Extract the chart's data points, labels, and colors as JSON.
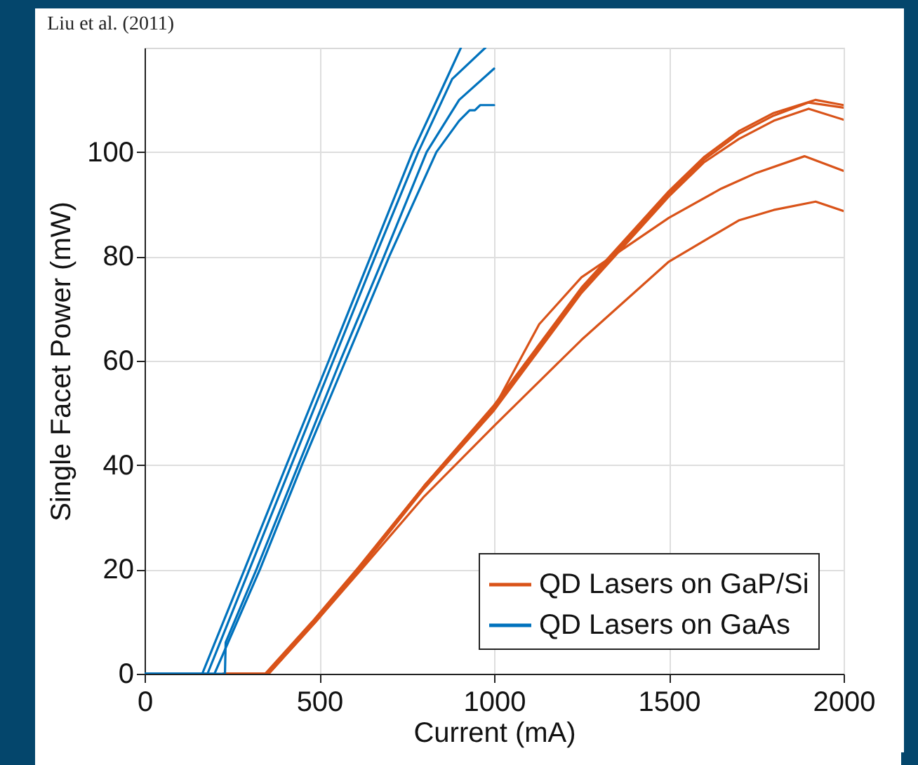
{
  "chart_data": {
    "type": "line",
    "xlabel": "Current (mA)",
    "ylabel": "Single Facet Power (mW)",
    "annotations": [
      "Liu et al. (2011)"
    ],
    "xlim": [
      0,
      2000
    ],
    "xticks": [
      0,
      500,
      1000,
      1500,
      2000
    ],
    "ylim": [
      0,
      120
    ],
    "yticks": [
      0,
      20,
      40,
      60,
      80,
      100
    ],
    "grid": true,
    "legend": "bottom right",
    "marker": "none",
    "line_style": "solid",
    "series": [
      {
        "name": "QD Lasers on GaP/Si",
        "color": "#d95319",
        "x": [
          225,
          345,
          480,
          607,
          800,
          1000,
          1250,
          1500,
          1600,
          1700,
          1800,
          1920,
          2000
        ],
        "values": [
          0,
          0,
          10,
          20,
          36,
          51.5,
          74,
          92.5,
          99,
          104,
          107.5,
          110,
          109
        ]
      },
      {
        "color": "#d95319",
        "x": [
          225,
          350,
          485,
          610,
          800,
          1000,
          1250,
          1500,
          1600,
          1700,
          1800,
          1900,
          2000
        ],
        "values": [
          0,
          0,
          10,
          20,
          36,
          51,
          73.5,
          92,
          98.5,
          103.5,
          107,
          109.5,
          108.5
        ]
      },
      {
        "color": "#d95319",
        "x": [
          225,
          355,
          490,
          615,
          800,
          1000,
          1250,
          1500,
          1600,
          1700,
          1800,
          1900,
          2000
        ],
        "values": [
          0,
          0,
          10,
          20,
          35.5,
          50.5,
          73,
          91.5,
          98,
          102.5,
          106,
          108.3,
          106.2
        ]
      },
      {
        "color": "#d95319",
        "x": [
          225,
          350,
          485,
          610,
          800,
          1000,
          1129,
          1250,
          1500,
          1650,
          1750,
          1888,
          2000
        ],
        "values": [
          0,
          0,
          10,
          20,
          36,
          51,
          67,
          76,
          87.4,
          93,
          96,
          99.2,
          96.4
        ]
      },
      {
        "color": "#d95319",
        "x": [
          225,
          355,
          490,
          620,
          800,
          1000,
          1250,
          1500,
          1700,
          1800,
          1920,
          2000
        ],
        "values": [
          0,
          0,
          10,
          20,
          34,
          47.5,
          64,
          79,
          86.9,
          88.9,
          90.5,
          88.7
        ]
      },
      {
        "name": "QD Lasers on GaAs",
        "color": "#0072bd",
        "x": [
          0,
          165,
          286,
          406,
          527,
          647,
          767,
          850,
          905
        ],
        "values": [
          0,
          0,
          20,
          40,
          60,
          80,
          100,
          112,
          120
        ]
      },
      {
        "color": "#0072bd",
        "x": [
          0,
          180,
          300,
          420,
          540,
          660,
          783,
          880,
          975
        ],
        "values": [
          0,
          0,
          20,
          40,
          60,
          80,
          100,
          114,
          120
        ]
      },
      {
        "color": "#0072bd",
        "x": [
          0,
          230,
          232,
          320,
          440,
          560,
          685,
          807,
          900,
          1000
        ],
        "values": [
          0,
          0,
          6,
          20,
          40,
          60,
          80,
          100,
          110,
          116
        ]
      },
      {
        "color": "#0072bd",
        "x": [
          0,
          200,
          330,
          450,
          575,
          700,
          835,
          900,
          930,
          945,
          960,
          1000
        ],
        "values": [
          0,
          0,
          20,
          40,
          60,
          80,
          100,
          106,
          108,
          108,
          109,
          109
        ]
      }
    ]
  }
}
